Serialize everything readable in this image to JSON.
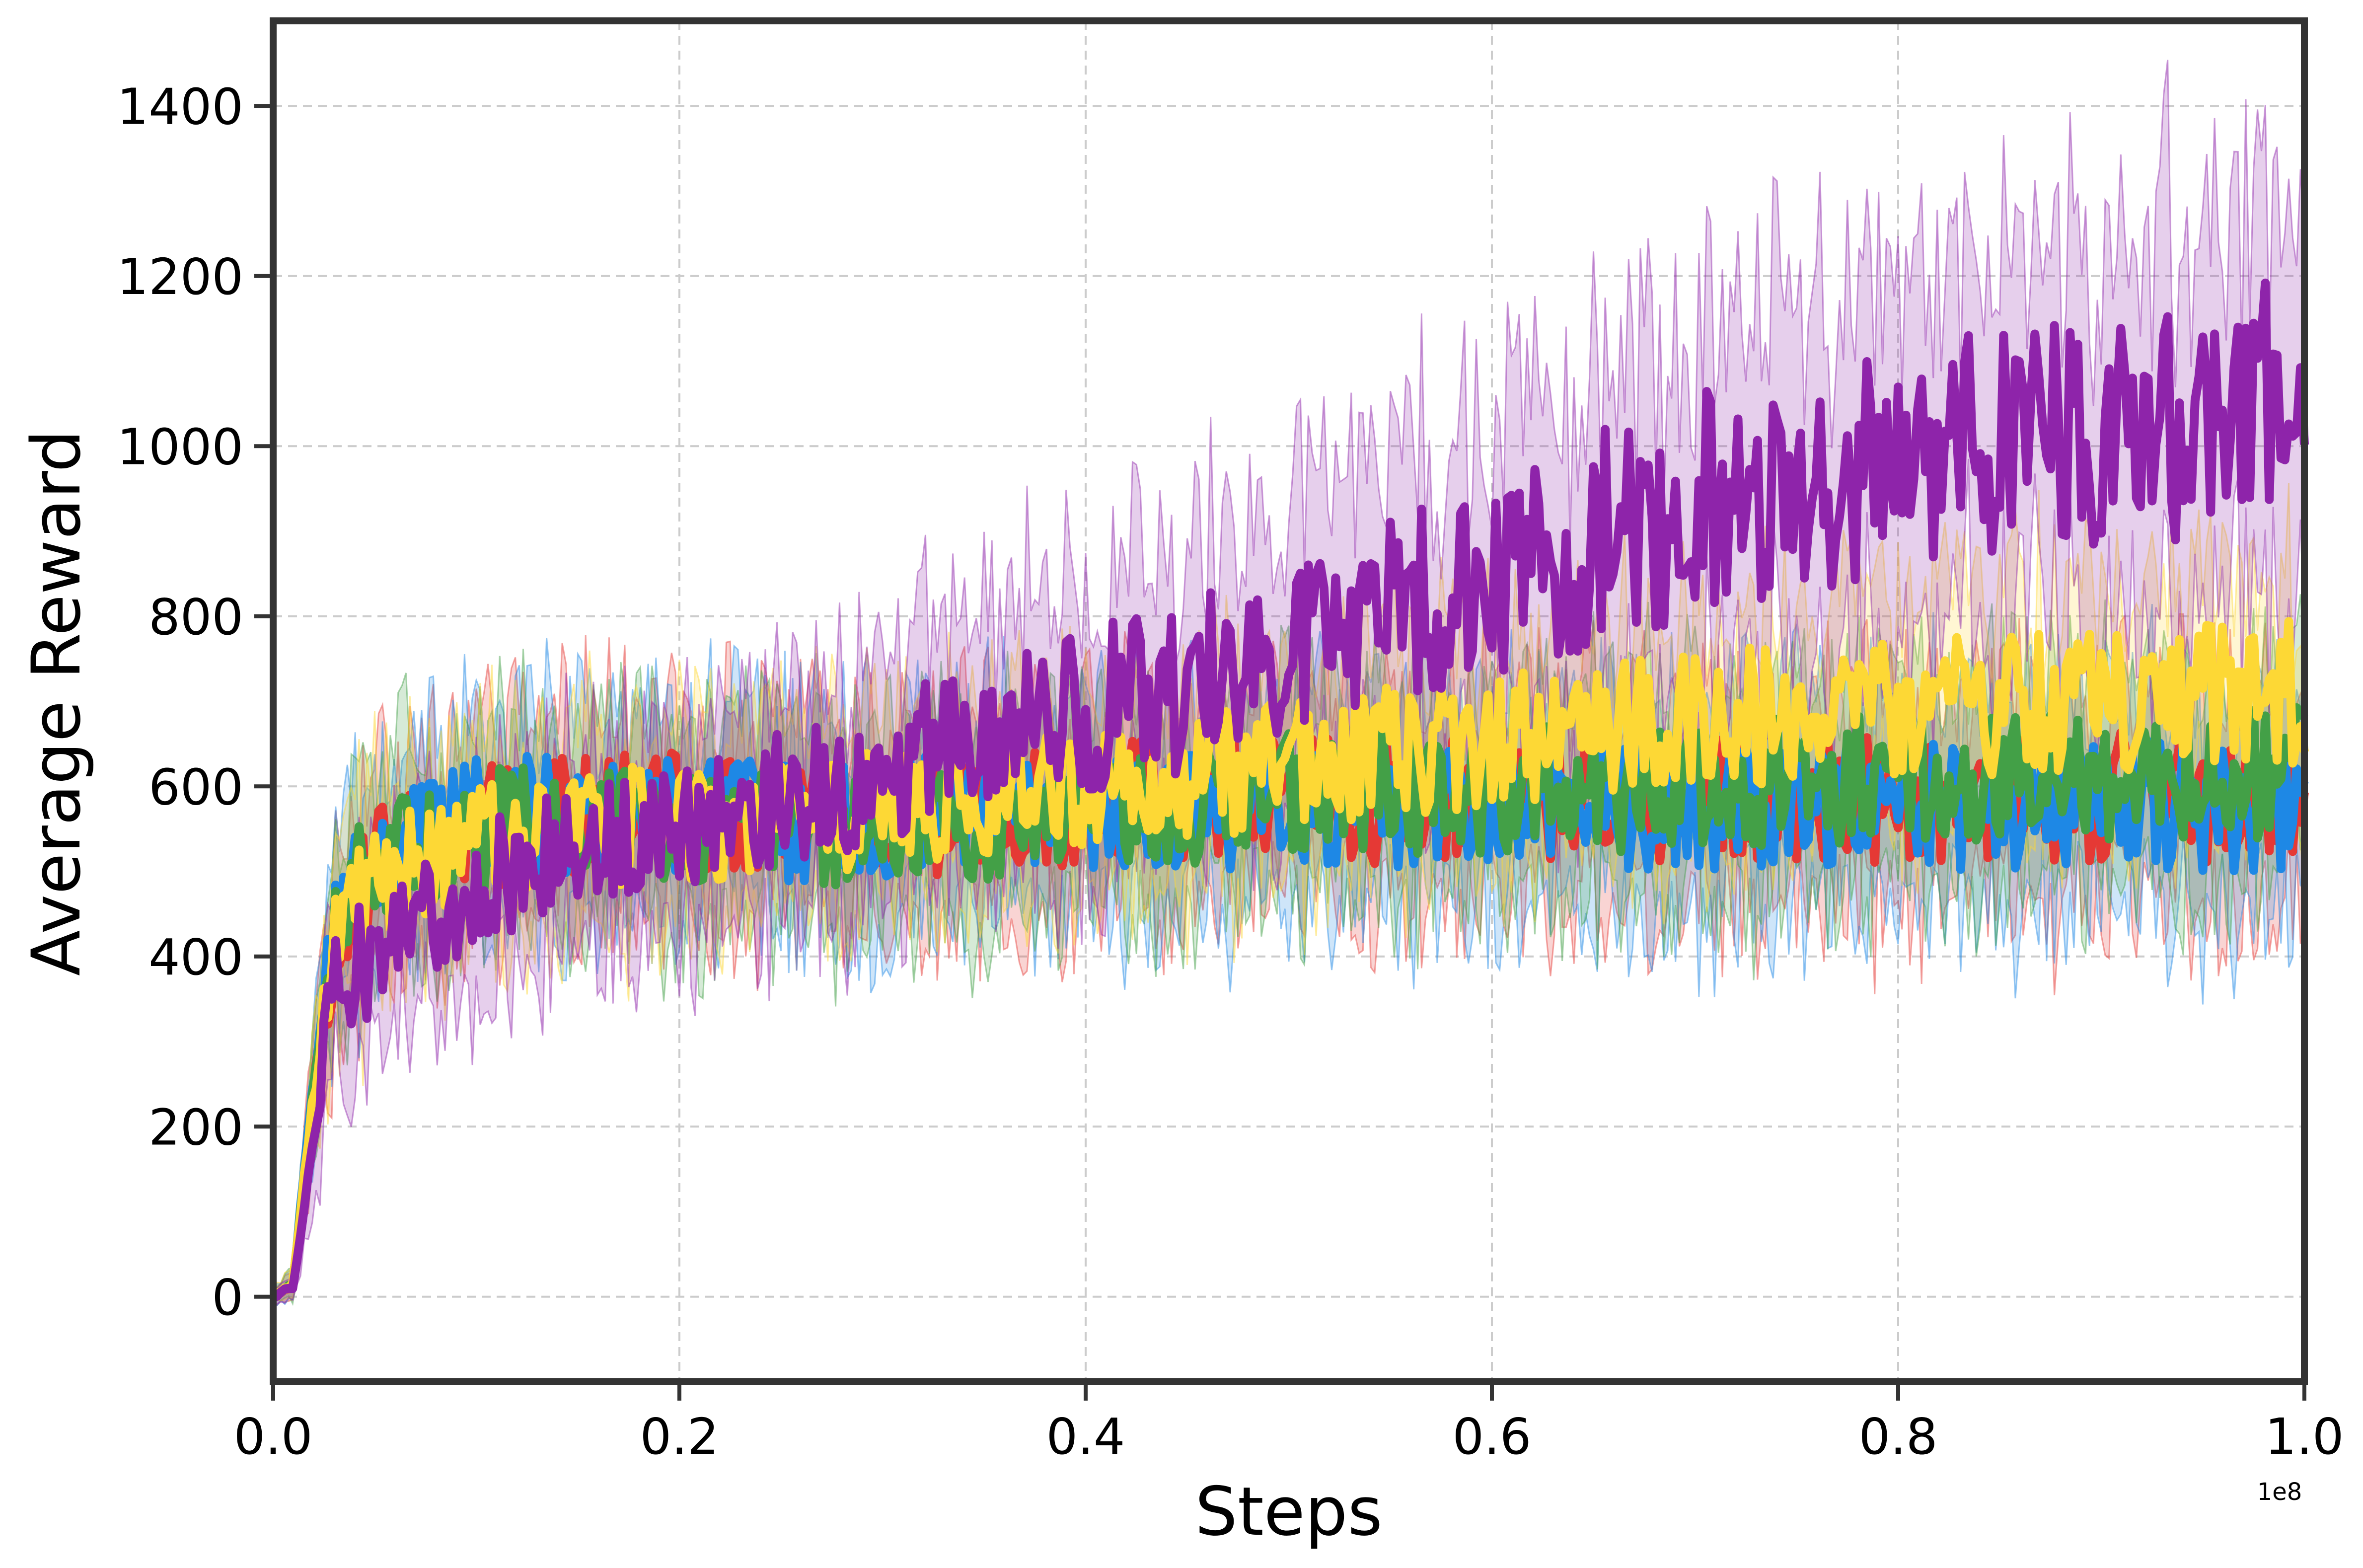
{
  "chart_data": {
    "type": "line",
    "title": "",
    "xlabel": "Steps",
    "ylabel": "Average Reward",
    "xlim": [
      0,
      100000000
    ],
    "ylim": [
      -100,
      1500
    ],
    "x_exponent_label": "1e8",
    "x_ticks": [
      0,
      20000000,
      40000000,
      60000000,
      80000000,
      100000000
    ],
    "x_tick_labels": [
      "0.0",
      "0.2",
      "0.4",
      "0.6",
      "0.8",
      "1.0"
    ],
    "y_ticks": [
      0,
      200,
      400,
      600,
      800,
      1000,
      1200,
      1400
    ],
    "y_tick_labels": [
      "0",
      "200",
      "400",
      "600",
      "800",
      "1000",
      "1200",
      "1400"
    ],
    "grid": true,
    "legend": "none",
    "x": [
      0,
      1000000,
      2000000,
      3000000,
      4000000,
      5000000,
      7500000,
      10000000,
      12500000,
      15000000,
      20000000,
      25000000,
      30000000,
      35000000,
      40000000,
      45000000,
      50000000,
      55000000,
      60000000,
      65000000,
      70000000,
      75000000,
      80000000,
      85000000,
      90000000,
      95000000,
      100000000
    ],
    "series": [
      {
        "name": "red",
        "color": "#e53935",
        "values": [
          0,
          15,
          250,
          420,
          470,
          500,
          530,
          550,
          560,
          570,
          570,
          560,
          560,
          570,
          580,
          585,
          590,
          580,
          585,
          590,
          580,
          590,
          585,
          590,
          585,
          590,
          600
        ],
        "band_halfwidth": [
          10,
          20,
          100,
          120,
          130,
          130,
          130,
          130,
          130,
          130,
          130,
          130,
          130,
          130,
          130,
          130,
          135,
          135,
          135,
          140,
          140,
          140,
          140,
          140,
          140,
          145,
          145
        ]
      },
      {
        "name": "blue",
        "color": "#1e88e5",
        "values": [
          0,
          15,
          260,
          430,
          480,
          510,
          540,
          560,
          565,
          565,
          560,
          560,
          560,
          570,
          575,
          570,
          575,
          575,
          580,
          575,
          575,
          580,
          575,
          580,
          575,
          580,
          580
        ],
        "band_halfwidth": [
          10,
          20,
          100,
          120,
          130,
          130,
          130,
          130,
          130,
          130,
          130,
          130,
          130,
          130,
          130,
          130,
          135,
          135,
          135,
          140,
          140,
          140,
          140,
          140,
          140,
          145,
          145
        ]
      },
      {
        "name": "green",
        "color": "#43a047",
        "values": [
          0,
          15,
          250,
          420,
          475,
          505,
          530,
          545,
          555,
          555,
          555,
          550,
          550,
          560,
          570,
          580,
          590,
          590,
          595,
          600,
          600,
          605,
          605,
          610,
          610,
          615,
          620
        ],
        "band_halfwidth": [
          10,
          20,
          100,
          120,
          130,
          130,
          130,
          130,
          130,
          130,
          130,
          130,
          130,
          130,
          130,
          130,
          135,
          135,
          135,
          140,
          140,
          140,
          140,
          140,
          140,
          145,
          145
        ]
      },
      {
        "name": "yellow",
        "color": "#fdd835",
        "values": [
          0,
          15,
          240,
          410,
          450,
          480,
          510,
          530,
          540,
          550,
          560,
          560,
          570,
          580,
          600,
          610,
          625,
          640,
          655,
          665,
          675,
          685,
          690,
          695,
          700,
          705,
          710
        ],
        "band_halfwidth": [
          10,
          20,
          100,
          120,
          130,
          130,
          130,
          130,
          130,
          130,
          130,
          130,
          130,
          130,
          130,
          135,
          140,
          140,
          145,
          145,
          150,
          150,
          150,
          150,
          150,
          155,
          155
        ]
      },
      {
        "name": "purple",
        "color": "#8e24aa",
        "values": [
          0,
          12,
          180,
          360,
          390,
          400,
          440,
          480,
          510,
          530,
          560,
          590,
          620,
          650,
          690,
          720,
          770,
          800,
          850,
          890,
          930,
          960,
          990,
          1000,
          1010,
          1030,
          1060
        ],
        "band_halfwidth": [
          10,
          20,
          100,
          120,
          130,
          130,
          130,
          130,
          130,
          130,
          140,
          150,
          160,
          170,
          180,
          190,
          200,
          210,
          220,
          230,
          240,
          245,
          250,
          255,
          260,
          265,
          270
        ]
      }
    ]
  }
}
